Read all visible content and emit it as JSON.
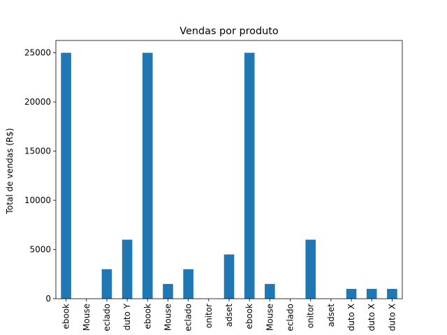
{
  "chart_data": {
    "type": "bar",
    "title": "Vendas por produto",
    "xlabel": "",
    "ylabel": "Total de vendas (R$)",
    "ylim": [
      0,
      26250
    ],
    "yticks": [
      0,
      5000,
      10000,
      15000,
      20000,
      25000
    ],
    "ytick_labels": [
      "0",
      "5000",
      "10000",
      "15000",
      "20000",
      "25000"
    ],
    "bar_color": "#1f77b4",
    "grid": false,
    "categories": [
      "ebook",
      "Mouse",
      "eclado",
      "duto Y",
      "ebook",
      "Mouse",
      "eclado",
      "onitor",
      "adset",
      "ebook",
      "Mouse",
      "eclado",
      "onitor",
      "adset",
      "duto X",
      "duto X",
      "duto X"
    ],
    "values": [
      25000,
      0,
      3000,
      6000,
      25000,
      1500,
      3000,
      0,
      4500,
      25000,
      1500,
      0,
      6000,
      0,
      1000,
      1000,
      1000
    ]
  }
}
